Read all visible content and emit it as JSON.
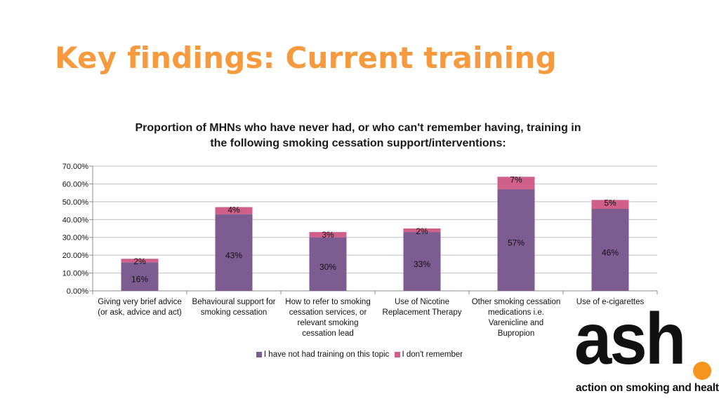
{
  "slide": {
    "title": "Key findings: Current training"
  },
  "chart_data": {
    "type": "bar",
    "stacked": true,
    "title_line1": "Proportion of MHNs who have never had, or who can't remember having, training in",
    "title_line2": "the following smoking cessation support/interventions:",
    "categories": [
      "Giving very brief advice (or ask, advice and act)",
      "Behavioural support for smoking cessation",
      "How to refer to smoking cessation services, or relevant smoking cessation lead",
      "Use of Nicotine Replacement Therapy",
      "Other smoking cessation medications i.e. Varenicline and Bupropion",
      "Use of e-cigarettes"
    ],
    "series": [
      {
        "name": "I have not had training on this topic",
        "color": "#7D5C91",
        "values": [
          16,
          43,
          30,
          33,
          57,
          46
        ]
      },
      {
        "name": "I don't remember",
        "color": "#D0608A",
        "values": [
          2,
          4,
          3,
          2,
          7,
          5
        ]
      }
    ],
    "data_labels": [
      [
        "16%",
        "43%",
        "30%",
        "33%",
        "57%",
        "46%"
      ],
      [
        "2%",
        "4%",
        "3%",
        "2%",
        "7%",
        "5%"
      ]
    ],
    "ylim": [
      0,
      70
    ],
    "yticks": [
      "0.00%",
      "10.00%",
      "20.00%",
      "30.00%",
      "40.00%",
      "50.00%",
      "60.00%",
      "70.00%"
    ],
    "grid": true,
    "legend_position": "bottom"
  },
  "logo": {
    "word": "ash",
    "tagline": "action on smoking and health",
    "dot_color": "#F7941D"
  }
}
